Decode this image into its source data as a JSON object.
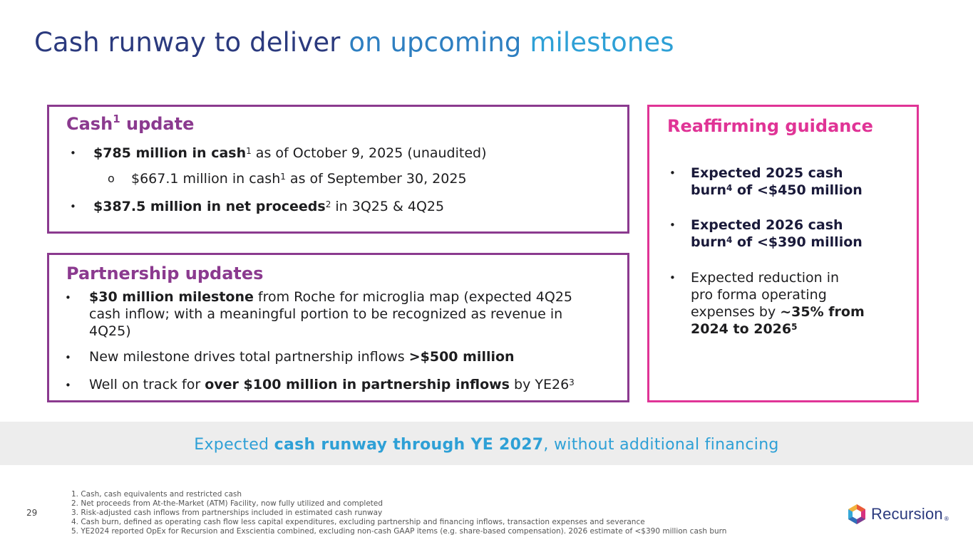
{
  "title": {
    "part1": "Cash runway to deliver ",
    "part2": "on upcoming ",
    "part3": "milestones"
  },
  "cash": {
    "heading_pre": "Cash",
    "heading_sup": "1",
    "heading_post": " update",
    "b1_bold": "$785 million in cash",
    "b1_sup": "1",
    "b1_rest": " as of October 9, 2025 (unaudited)",
    "sub_marker": "o",
    "sub_text": "$667.1 million in cash",
    "sub_sup": "1",
    "sub_rest": " as of September 30, 2025",
    "b2_bold": "$387.5 million in net proceeds",
    "b2_sup": "2",
    "b2_rest": " in 3Q25 & 4Q25"
  },
  "partnership": {
    "heading": "Partnership updates",
    "b1_bold": "$30 million milestone",
    "b1_rest_line1": " from Roche for microglia map (expected 4Q25",
    "b1_line2": "cash inflow; with a meaningful portion to be recognized as revenue in",
    "b1_line3": "4Q25)",
    "b2_pre": "New milestone drives total partnership inflows ",
    "b2_bold": ">$500 million",
    "b3_pre": "Well on track for ",
    "b3_bold": "over $100 million in partnership inflows",
    "b3_post": " by YE26",
    "b3_sup": "3"
  },
  "guidance": {
    "heading": "Reaffirming guidance",
    "b1_line1": "Expected 2025 cash",
    "b1_line2_a": "burn",
    "b1_sup": "4",
    "b1_line2_b": " of <$450 million",
    "b2_line1": "Expected 2026 cash",
    "b2_line2_a": "burn",
    "b2_sup": "4",
    "b2_line2_b": " of <$390 million",
    "b3_line1": "Expected reduction in",
    "b3_line2": "pro forma operating",
    "b3_line3_pre": "expenses by ",
    "b3_line3_bold": "~35% from",
    "b3_line4_bold": "2024 to 2026",
    "b3_sup": "5"
  },
  "band": {
    "pre": "Expected ",
    "bold": "cash runway through YE 2027",
    "post": ", without additional financing"
  },
  "page_number": "29",
  "footnotes": [
    "1.  Cash, cash equivalents and restricted cash",
    "2.  Net proceeds from At-the-Market (ATM) Facility, now fully utilized and completed",
    "3.  Risk-adjusted cash inflows from partnerships included in estimated cash runway",
    "4.  Cash burn, defined as operating cash flow less capital expenditures, excluding partnership and financing inflows, transaction expenses and severance",
    "5.  YE2024 reported OpEx for Recursion and Exscientia combined, excluding non-cash GAAP items (e.g. share-based compensation). 2026 estimate of <$390 million cash burn"
  ],
  "logo": {
    "word": "Recursion",
    "reg": "®"
  },
  "colors": {
    "title_dark": "#2b3a7e",
    "title_mid": "#2e7fc1",
    "title_light": "#2ea0d6",
    "purple": "#8b3a8f",
    "magenta": "#e03496",
    "band_bg": "#ededed"
  }
}
